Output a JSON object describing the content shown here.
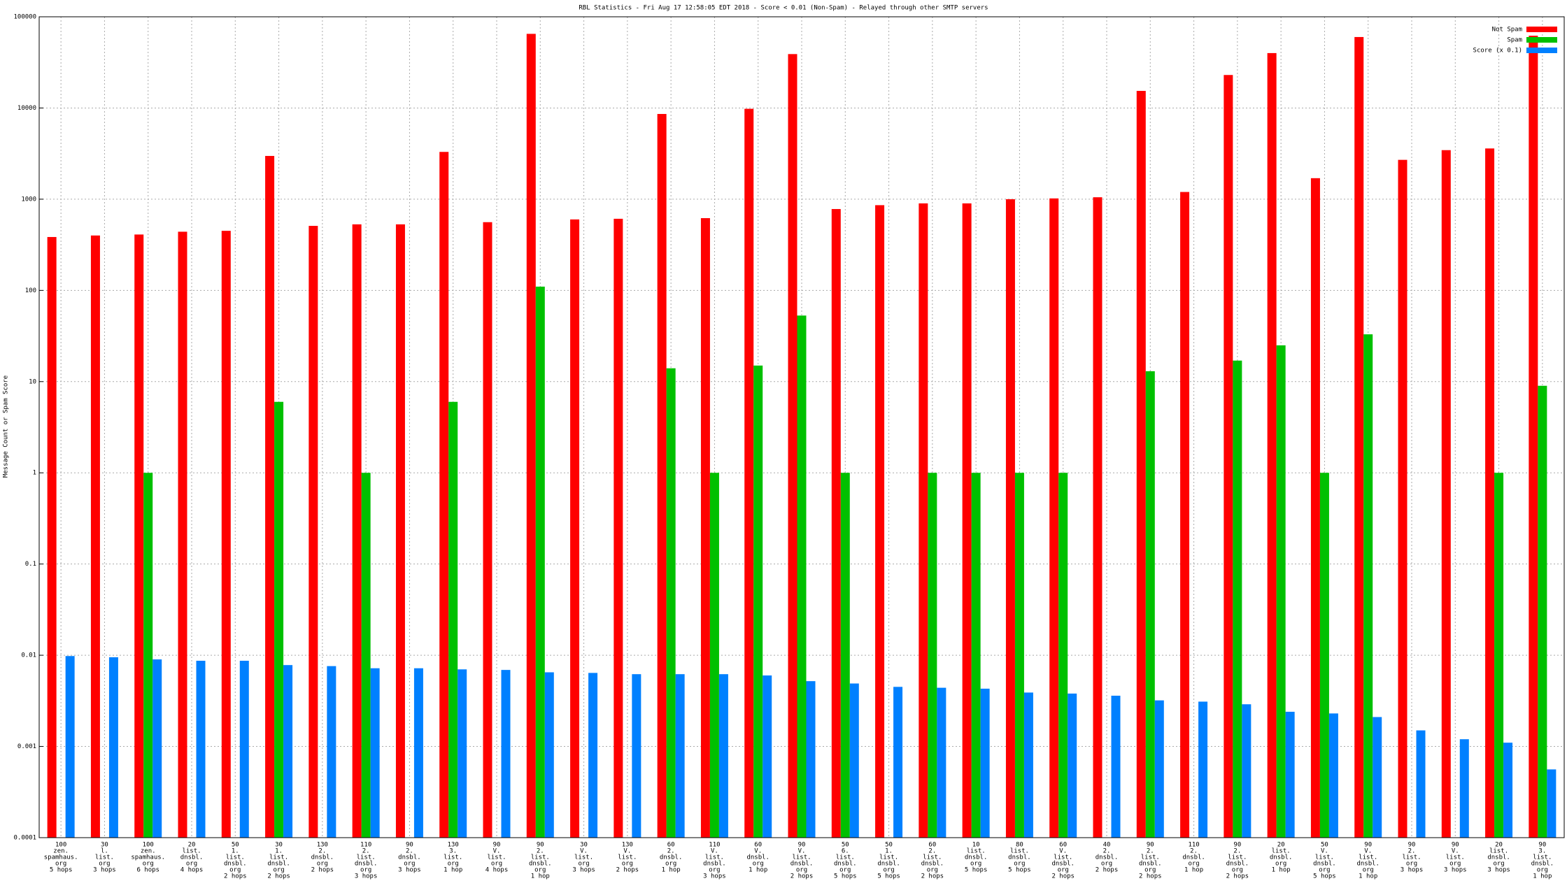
{
  "chart_data": {
    "type": "bar",
    "title": "RBL Statistics - Fri Aug 17 12:58:05 EDT 2018 - Score < 0.01 (Non-Spam) - Relayed through other SMTP servers",
    "y_label": "Message Count or Spam Score",
    "log_scale": true,
    "grid": true,
    "legend": "top-right",
    "ylim": [
      0.0001,
      100000
    ],
    "yticks": [
      0.0001,
      0.001,
      0.01,
      0.1,
      1,
      10,
      100,
      1000,
      10000,
      100000
    ],
    "categories": [
      [
        "100",
        "zen.",
        "spamhaus.",
        "org",
        "5 hops"
      ],
      [
        "30",
        "l.",
        "list.",
        "org",
        "3 hops"
      ],
      [
        "100",
        "zen.",
        "spamhaus.",
        "org",
        "6 hops"
      ],
      [
        "20",
        "list.",
        "dnsbl.",
        "org",
        "4 hops"
      ],
      [
        "50",
        "1.",
        "list.",
        "dnsbl.",
        "org",
        "2 hops"
      ],
      [
        "30",
        "1.",
        "list.",
        "dnsbl.",
        "org",
        "2 hops"
      ],
      [
        "130",
        "2.",
        "dnsbl.",
        "org",
        "2 hops"
      ],
      [
        "110",
        "2.",
        "list.",
        "dnsbl.",
        "org",
        "3 hops"
      ],
      [
        "90",
        "2.",
        "dnsbl.",
        "org",
        "3 hops"
      ],
      [
        "130",
        "3.",
        "list.",
        "org",
        "1 hop"
      ],
      [
        "90",
        "V.",
        "list.",
        "org",
        "4 hops"
      ],
      [
        "90",
        "2.",
        "list.",
        "dnsbl.",
        "org",
        "1 hop"
      ],
      [
        "30",
        "V.",
        "list.",
        "org",
        "3 hops"
      ],
      [
        "130",
        "V.",
        "list.",
        "org",
        "2 hops"
      ],
      [
        "60",
        "2.",
        "dnsbl.",
        "org",
        "1 hop"
      ],
      [
        "110",
        "V.",
        "list.",
        "dnsbl.",
        "org",
        "3 hops"
      ],
      [
        "60",
        "V.",
        "dnsbl.",
        "org",
        "1 hop"
      ],
      [
        "90",
        "V.",
        "list.",
        "dnsbl.",
        "org",
        "2 hops"
      ],
      [
        "50",
        "6.",
        "list.",
        "dnsbl.",
        "org",
        "5 hops"
      ],
      [
        "50",
        "1.",
        "list.",
        "dnsbl.",
        "org",
        "5 hops"
      ],
      [
        "60",
        "2.",
        "list.",
        "dnsbl.",
        "org",
        "2 hops"
      ],
      [
        "10",
        "list.",
        "dnsbl.",
        "org",
        "5 hops"
      ],
      [
        "80",
        "list.",
        "dnsbl.",
        "org",
        "5 hops"
      ],
      [
        "60",
        "V.",
        "list.",
        "dnsbl.",
        "org",
        "2 hops"
      ],
      [
        "40",
        "2.",
        "dnsbl.",
        "org",
        "2 hops"
      ],
      [
        "90",
        "2.",
        "list.",
        "dnsbl.",
        "org",
        "2 hops"
      ],
      [
        "110",
        "2.",
        "dnsbl.",
        "org",
        "1 hop"
      ],
      [
        "90",
        "2.",
        "list.",
        "dnsbl.",
        "org",
        "2 hops"
      ],
      [
        "20",
        "list.",
        "dnsbl.",
        "org",
        "1 hop"
      ],
      [
        "50",
        "V.",
        "list.",
        "dnsbl.",
        "org",
        "5 hops"
      ],
      [
        "90",
        "V.",
        "list.",
        "dnsbl.",
        "org",
        "1 hop"
      ],
      [
        "90",
        "2.",
        "list.",
        "org",
        "3 hops"
      ],
      [
        "90",
        "V.",
        "list.",
        "org",
        "3 hops"
      ],
      [
        "20",
        "list.",
        "dnsbl.",
        "org",
        "3 hops"
      ],
      [
        "90",
        "3.",
        "list.",
        "dnsbl.",
        "org",
        "1 hop"
      ]
    ],
    "series": [
      {
        "name": "Not Spam",
        "color": "#ff0000",
        "values": [
          385,
          400,
          410,
          440,
          450,
          2980,
          510,
          530,
          530,
          3300,
          560,
          65000,
          600,
          610,
          8600,
          620,
          9800,
          39000,
          780,
          860,
          900,
          900,
          1000,
          1020,
          1050,
          15400,
          1200,
          23000,
          40000,
          1700,
          60000,
          2700,
          3450,
          3600,
          62000
        ]
      },
      {
        "name": "Spam",
        "color": "#00c000",
        "values": [
          null,
          null,
          1,
          null,
          null,
          6,
          null,
          1,
          null,
          6,
          null,
          110,
          null,
          null,
          14,
          1,
          15,
          53,
          1,
          null,
          1,
          1,
          1,
          1,
          null,
          13,
          null,
          17,
          25,
          1,
          33,
          null,
          null,
          1,
          9
        ]
      },
      {
        "name": "Score (x 0.1)",
        "color": "#0080ff",
        "values": [
          0.0098,
          0.0095,
          0.009,
          0.0087,
          0.0087,
          0.0078,
          0.0076,
          0.0072,
          0.0072,
          0.007,
          0.0069,
          0.0065,
          0.0064,
          0.0062,
          0.0062,
          0.0062,
          0.006,
          0.0052,
          0.0049,
          0.0045,
          0.0044,
          0.0043,
          0.0039,
          0.0038,
          0.0036,
          0.0032,
          0.0031,
          0.0029,
          0.0024,
          0.0023,
          0.0021,
          0.0015,
          0.0012,
          0.0011,
          0.00056
        ]
      }
    ]
  }
}
